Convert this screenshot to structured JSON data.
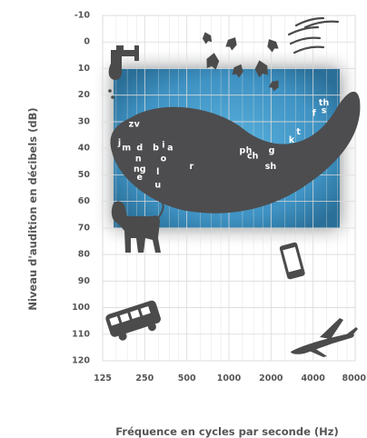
{
  "chart_data": {
    "type": "scatter",
    "xlabel": "Fréquence en cycles par seconde (Hz)",
    "ylabel": "Niveau d'audition en décibels (dB)",
    "x_ticks": [
      "125",
      "250",
      "500",
      "1000",
      "2000",
      "4000",
      "8000"
    ],
    "y_ticks": [
      "-10",
      "0",
      "10",
      "20",
      "30",
      "40",
      "50",
      "60",
      "70",
      "80",
      "90",
      "100",
      "110",
      "120"
    ],
    "xscale": "log2",
    "xlim": [
      125,
      8000
    ],
    "ylim": [
      -10,
      120
    ],
    "y_inverted": true,
    "grid": true,
    "phonemes": [
      {
        "label": "z",
        "x": 200,
        "y": 31
      },
      {
        "label": "v",
        "x": 220,
        "y": 31
      },
      {
        "label": "j",
        "x": 165,
        "y": 38
      },
      {
        "label": "m",
        "x": 185,
        "y": 40
      },
      {
        "label": "d",
        "x": 230,
        "y": 40
      },
      {
        "label": "b",
        "x": 300,
        "y": 40
      },
      {
        "label": "i",
        "x": 340,
        "y": 39
      },
      {
        "label": "a",
        "x": 380,
        "y": 40
      },
      {
        "label": "n",
        "x": 225,
        "y": 44
      },
      {
        "label": "o",
        "x": 340,
        "y": 44
      },
      {
        "label": "ng",
        "x": 230,
        "y": 48
      },
      {
        "label": "e",
        "x": 230,
        "y": 51
      },
      {
        "label": "l",
        "x": 310,
        "y": 49
      },
      {
        "label": "u",
        "x": 310,
        "y": 54
      },
      {
        "label": "r",
        "x": 540,
        "y": 47
      },
      {
        "label": "p",
        "x": 1250,
        "y": 41
      },
      {
        "label": "h",
        "x": 1390,
        "y": 41
      },
      {
        "label": "ch",
        "x": 1480,
        "y": 43
      },
      {
        "label": "g",
        "x": 2020,
        "y": 41
      },
      {
        "label": "sh",
        "x": 1990,
        "y": 47
      },
      {
        "label": "k",
        "x": 2810,
        "y": 37
      },
      {
        "label": "t",
        "x": 3150,
        "y": 34
      },
      {
        "label": "f",
        "x": 4060,
        "y": 27
      },
      {
        "label": "th",
        "x": 4780,
        "y": 23
      },
      {
        "label": "s",
        "x": 4780,
        "y": 26
      }
    ]
  },
  "icons": [
    "faucet-icon",
    "leaves-icon",
    "birds-icon",
    "dog-icon",
    "phone-icon",
    "bus-icon",
    "airplane-icon"
  ],
  "colors": {
    "banana": "#4d4d4f",
    "shade_outer": "#2a6f98",
    "shade_inner": "#5ab2dd",
    "grid": "#dadada",
    "axis_text": "#555555",
    "icon": "#4b4b4b"
  }
}
